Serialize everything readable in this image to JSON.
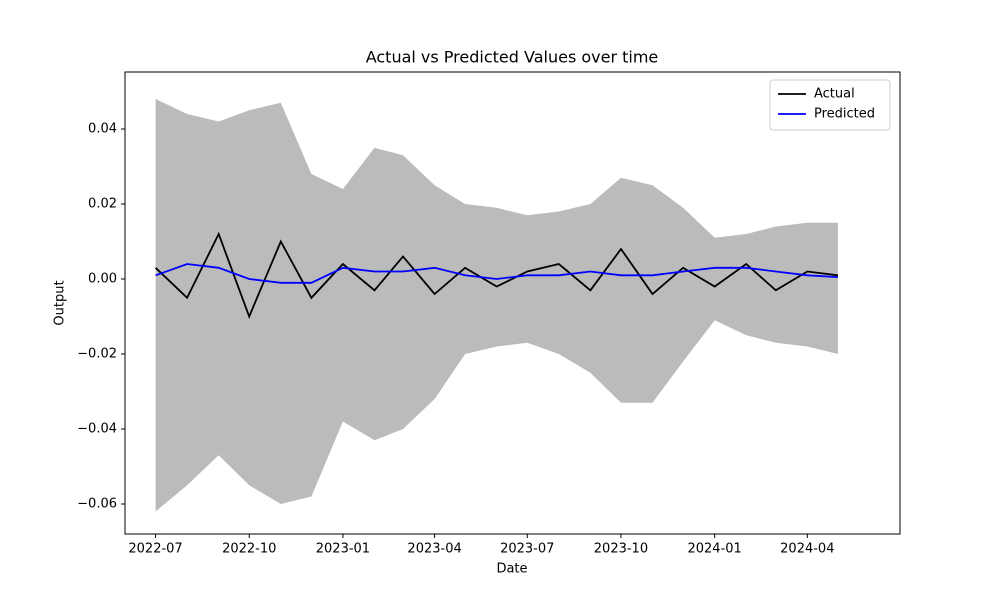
{
  "chart_data": {
    "type": "line",
    "title": "Actual vs Predicted Values over time",
    "xlabel": "Date",
    "ylabel": "Output",
    "x": [
      "2022-07",
      "2022-08",
      "2022-09",
      "2022-10",
      "2022-11",
      "2022-12",
      "2023-01",
      "2023-02",
      "2023-03",
      "2023-04",
      "2023-05",
      "2023-06",
      "2023-07",
      "2023-08",
      "2023-09",
      "2023-10",
      "2023-11",
      "2023-12",
      "2024-01",
      "2024-02",
      "2024-03",
      "2024-04",
      "2024-05"
    ],
    "series": [
      {
        "name": "Actual",
        "color": "#000000",
        "values": [
          0.003,
          -0.005,
          0.012,
          -0.01,
          0.01,
          -0.005,
          0.004,
          -0.003,
          0.006,
          -0.004,
          0.003,
          -0.002,
          0.002,
          0.004,
          -0.003,
          0.008,
          -0.004,
          0.003,
          -0.002,
          0.004,
          -0.003,
          0.002,
          0.001
        ]
      },
      {
        "name": "Predicted",
        "color": "#0000ff",
        "values": [
          0.001,
          0.004,
          0.003,
          0.0,
          -0.001,
          -0.001,
          0.003,
          0.002,
          0.002,
          0.003,
          0.001,
          0.0,
          0.001,
          0.001,
          0.002,
          0.001,
          0.001,
          0.002,
          0.003,
          0.003,
          0.002,
          0.001,
          0.0005
        ]
      }
    ],
    "band": {
      "color": "#bbbbbb",
      "upper": [
        0.048,
        0.044,
        0.042,
        0.045,
        0.047,
        0.028,
        0.024,
        0.035,
        0.033,
        0.025,
        0.02,
        0.019,
        0.017,
        0.018,
        0.02,
        0.027,
        0.025,
        0.019,
        0.011,
        0.012,
        0.014,
        0.015,
        0.015
      ],
      "lower": [
        -0.062,
        -0.055,
        -0.047,
        -0.055,
        -0.06,
        -0.058,
        -0.038,
        -0.043,
        -0.04,
        -0.032,
        -0.02,
        -0.018,
        -0.017,
        -0.02,
        -0.025,
        -0.033,
        -0.033,
        -0.022,
        -0.011,
        -0.015,
        -0.017,
        -0.018,
        -0.02
      ]
    },
    "xlim": [
      "2022-06",
      "2024-07"
    ],
    "xticks": [
      "2022-07",
      "2022-10",
      "2023-01",
      "2023-04",
      "2023-07",
      "2023-10",
      "2024-01",
      "2024-04"
    ],
    "ylim": [
      -0.068,
      0.0552
    ],
    "yticks": [
      {
        "value": -0.06,
        "label": "−0.06"
      },
      {
        "value": -0.04,
        "label": "−0.04"
      },
      {
        "value": -0.02,
        "label": "−0.02"
      },
      {
        "value": 0,
        "label": "0.00"
      },
      0.02,
      0.04
    ],
    "legend": "upper right",
    "grid": false
  }
}
